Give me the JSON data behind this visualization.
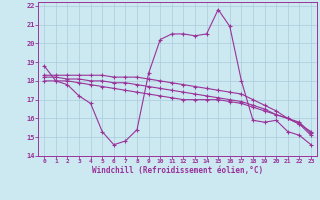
{
  "xlabel": "Windchill (Refroidissement éolien,°C)",
  "background_color": "#cce8f0",
  "grid_color": "#aaccdd",
  "line_color": "#993399",
  "xlim": [
    -0.5,
    23.5
  ],
  "ylim": [
    14,
    22.2
  ],
  "xticks": [
    0,
    1,
    2,
    3,
    4,
    5,
    6,
    7,
    8,
    9,
    10,
    11,
    12,
    13,
    14,
    15,
    16,
    17,
    18,
    19,
    20,
    21,
    22,
    23
  ],
  "yticks": [
    14,
    15,
    16,
    17,
    18,
    19,
    20,
    21,
    22
  ],
  "curve1": [
    18.8,
    18.0,
    17.8,
    17.2,
    16.8,
    15.3,
    14.6,
    14.8,
    15.4,
    18.4,
    20.2,
    20.5,
    20.5,
    20.4,
    20.5,
    21.8,
    20.9,
    18.0,
    15.9,
    15.8,
    15.9,
    15.3,
    15.1,
    14.6
  ],
  "curve2": [
    18.0,
    18.0,
    18.0,
    17.9,
    17.8,
    17.7,
    17.6,
    17.5,
    17.4,
    17.3,
    17.2,
    17.1,
    17.0,
    17.0,
    17.0,
    17.0,
    16.9,
    16.8,
    16.6,
    16.4,
    16.2,
    16.0,
    15.8,
    15.2
  ],
  "curve3": [
    18.2,
    18.2,
    18.1,
    18.1,
    18.0,
    18.0,
    17.9,
    17.9,
    17.8,
    17.7,
    17.6,
    17.5,
    17.4,
    17.3,
    17.2,
    17.1,
    17.0,
    16.9,
    16.7,
    16.5,
    16.2,
    16.0,
    15.7,
    15.3
  ],
  "curve4": [
    18.3,
    18.3,
    18.3,
    18.3,
    18.3,
    18.3,
    18.2,
    18.2,
    18.2,
    18.1,
    18.0,
    17.9,
    17.8,
    17.7,
    17.6,
    17.5,
    17.4,
    17.3,
    17.0,
    16.7,
    16.4,
    16.0,
    15.7,
    15.1
  ]
}
